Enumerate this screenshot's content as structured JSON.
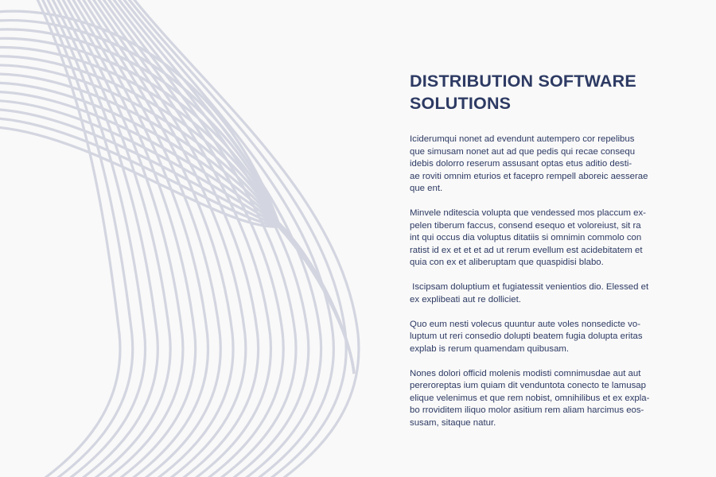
{
  "colors": {
    "background": "#f9f9f9",
    "text": "#2d3a63",
    "lines": "#d3d5e0"
  },
  "title_lines": [
    "DISTRIBUTION SOFTWARE",
    "SOLUTIONS"
  ],
  "paragraphs": [
    [
      "Iciderumqui nonet ad evendunt autempero cor repelibus",
      "que simusam nonet aut ad que pedis qui recae consequ",
      "idebis dolorro reserum assusant optas etus aditio desti-",
      "ae roviti omnim eturios et facepro rempell aboreic aesserae",
      "que ent."
    ],
    [
      "Minvele nditescia volupta que vendessed mos placcum ex-",
      "pelen tiberum faccus, consend esequo et voloreiust, sit ra",
      "int qui occus dia voluptus ditatiis si omnimin commolo con",
      "ratist id ex et et et ad ut rerum evellum est acidebitatem et",
      "quia con ex et aliberuptam que quaspidisi blabo."
    ],
    [
      " Iscipsam doluptium et fugiatessit venientios dio. Elessed et",
      "ex explibeati aut re dolliciet."
    ],
    [
      "Quo eum nesti volecus quuntur aute voles nonsedicte vo-",
      "luptum ut reri consedio dolupti beatem fugia dolupta eritas",
      "explab is rerum quamendam quibusam."
    ],
    [
      "Nones dolori officid molenis modisti comnimusdae aut aut",
      "pereroreptas ium quiam dit venduntota conecto te lamusap",
      "elique velenimus et que rem nobist, omnihilibus et ex expla-",
      "bo rroviditem iliquo molor asitium rem aliam harcimus eos-",
      "susam, sitaque natur."
    ]
  ]
}
